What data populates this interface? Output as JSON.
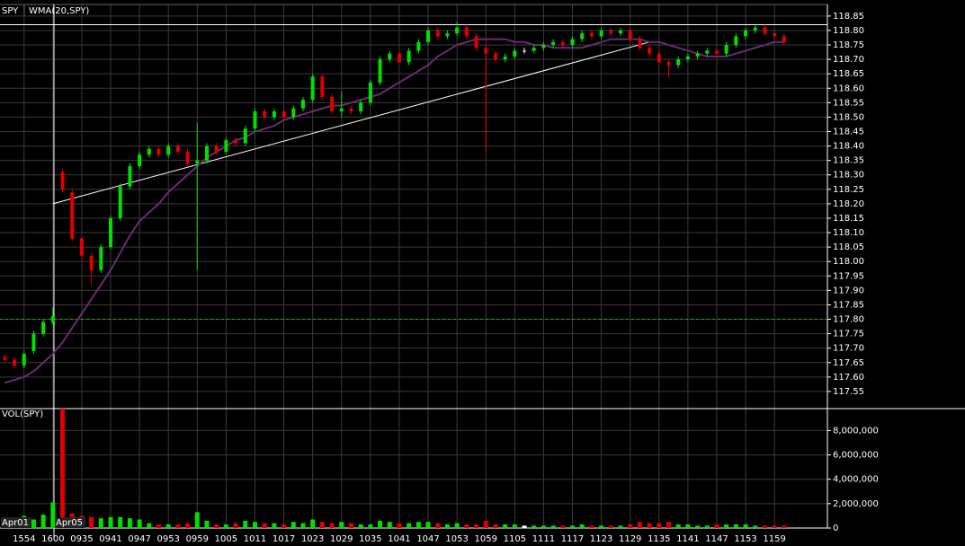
{
  "chart_data": {
    "type": "candlestick",
    "symbol": "SPY",
    "volume_title": "VOL(SPY)",
    "sessions": [
      "Apr01",
      "Apr05"
    ],
    "categories": [
      null,
      null,
      "1554",
      null,
      null,
      "1600",
      null,
      null,
      "0935",
      null,
      null,
      "0941",
      null,
      null,
      "0947",
      null,
      null,
      "0953",
      null,
      null,
      "0959",
      null,
      null,
      "1005",
      null,
      null,
      "1011",
      null,
      null,
      "1017",
      null,
      null,
      "1023",
      null,
      null,
      "1029",
      null,
      null,
      "1035",
      null,
      null,
      "1041",
      null,
      null,
      "1047",
      null,
      null,
      "1053",
      null,
      null,
      "1059",
      null,
      null,
      "1105",
      null,
      null,
      "1111",
      null,
      null,
      "1117",
      null,
      null,
      "1123",
      null,
      null,
      "1129",
      null,
      null,
      "1135",
      null,
      null,
      "1141",
      null,
      null,
      "1147",
      null,
      null,
      "1153",
      null,
      null,
      "1159",
      null
    ],
    "open": [
      117.67,
      117.66,
      117.64,
      117.69,
      117.75,
      117.79,
      118.31,
      118.24,
      118.08,
      118.02,
      117.97,
      118.05,
      118.15,
      118.26,
      118.33,
      118.37,
      118.39,
      118.37,
      118.4,
      118.38,
      118.34,
      118.35,
      118.4,
      118.38,
      118.42,
      118.41,
      118.46,
      118.52,
      118.5,
      118.52,
      118.5,
      118.53,
      118.56,
      118.64,
      118.57,
      118.52,
      118.53,
      118.52,
      118.55,
      118.62,
      118.7,
      118.72,
      118.69,
      118.73,
      118.76,
      118.8,
      118.78,
      118.79,
      118.81,
      118.78,
      118.74,
      118.72,
      118.7,
      118.71,
      118.73,
      118.73,
      118.74,
      118.75,
      118.76,
      118.75,
      118.77,
      118.79,
      118.78,
      118.8,
      118.79,
      118.8,
      118.77,
      118.74,
      118.72,
      118.69,
      118.68,
      118.7,
      118.71,
      118.72,
      118.73,
      118.72,
      118.75,
      118.78,
      118.8,
      118.81,
      118.79,
      118.78
    ],
    "high": [
      117.68,
      117.67,
      117.69,
      117.76,
      117.8,
      117.84,
      118.32,
      118.25,
      118.09,
      118.03,
      118.06,
      118.16,
      118.27,
      118.34,
      118.38,
      118.4,
      118.4,
      118.41,
      118.41,
      118.39,
      118.48,
      118.41,
      118.41,
      118.43,
      118.43,
      118.47,
      118.53,
      118.53,
      118.53,
      118.53,
      118.54,
      118.57,
      118.65,
      118.65,
      118.58,
      118.59,
      118.54,
      118.56,
      118.63,
      118.71,
      118.73,
      118.73,
      118.74,
      118.77,
      118.81,
      118.81,
      118.8,
      118.83,
      118.82,
      118.79,
      118.75,
      118.73,
      118.72,
      118.74,
      118.74,
      118.75,
      118.76,
      118.77,
      118.77,
      118.78,
      118.8,
      118.8,
      118.81,
      118.81,
      118.81,
      118.81,
      118.78,
      118.75,
      118.73,
      118.7,
      118.71,
      118.72,
      118.73,
      118.74,
      118.74,
      118.76,
      118.79,
      118.81,
      118.82,
      118.82,
      118.8,
      118.79
    ],
    "low": [
      117.65,
      117.63,
      117.63,
      117.68,
      117.74,
      117.78,
      118.24,
      118.07,
      118.01,
      117.92,
      117.96,
      118.04,
      118.14,
      118.25,
      118.32,
      118.36,
      118.36,
      118.36,
      118.37,
      118.33,
      117.97,
      118.34,
      118.37,
      118.37,
      118.4,
      118.4,
      118.45,
      118.49,
      118.49,
      118.49,
      118.49,
      118.52,
      118.55,
      118.56,
      118.51,
      118.5,
      118.51,
      118.51,
      118.54,
      118.61,
      118.69,
      118.68,
      118.68,
      118.72,
      118.75,
      118.77,
      118.77,
      118.78,
      118.77,
      118.73,
      118.38,
      118.69,
      118.69,
      118.7,
      118.72,
      118.72,
      118.73,
      118.74,
      118.74,
      118.74,
      118.76,
      118.77,
      118.77,
      118.78,
      118.78,
      118.76,
      118.73,
      118.71,
      118.68,
      118.64,
      118.67,
      118.69,
      118.7,
      118.71,
      118.71,
      118.71,
      118.74,
      118.77,
      118.79,
      118.78,
      118.77,
      118.75
    ],
    "close": [
      117.66,
      117.64,
      117.68,
      117.75,
      117.79,
      117.81,
      118.25,
      118.08,
      118.02,
      117.97,
      118.05,
      118.15,
      118.26,
      118.33,
      118.37,
      118.39,
      118.37,
      118.4,
      118.38,
      118.34,
      118.35,
      118.4,
      118.38,
      118.42,
      118.41,
      118.46,
      118.52,
      118.5,
      118.52,
      118.5,
      118.53,
      118.56,
      118.64,
      118.57,
      118.52,
      118.53,
      118.52,
      118.55,
      118.62,
      118.7,
      118.72,
      118.69,
      118.73,
      118.76,
      118.8,
      118.78,
      118.79,
      118.81,
      118.78,
      118.74,
      118.72,
      118.7,
      118.71,
      118.73,
      118.73,
      118.74,
      118.75,
      118.76,
      118.75,
      118.77,
      118.79,
      118.78,
      118.8,
      118.79,
      118.8,
      118.77,
      118.74,
      118.72,
      118.69,
      118.68,
      118.7,
      118.71,
      118.72,
      118.73,
      118.72,
      118.75,
      118.78,
      118.8,
      118.81,
      118.79,
      118.78,
      118.76
    ],
    "volume": [
      300000,
      600000,
      1000000,
      700000,
      1100000,
      2100000,
      9800000,
      1200000,
      1000000,
      900000,
      800000,
      900000,
      900000,
      800000,
      700000,
      400000,
      300000,
      300000,
      300000,
      400000,
      1300000,
      600000,
      300000,
      300000,
      400000,
      600000,
      500000,
      400000,
      400000,
      300000,
      500000,
      400000,
      700000,
      500000,
      400000,
      500000,
      400000,
      300000,
      300000,
      600000,
      500000,
      400000,
      400000,
      500000,
      500000,
      400000,
      300000,
      400000,
      300000,
      300000,
      600000,
      300000,
      300000,
      300000,
      200000,
      200000,
      200000,
      200000,
      200000,
      200000,
      300000,
      200000,
      200000,
      200000,
      200000,
      300000,
      500000,
      400000,
      400000,
      500000,
      300000,
      300000,
      200000,
      200000,
      300000,
      300000,
      300000,
      300000,
      200000,
      200000,
      200000,
      200000
    ],
    "series": [
      {
        "name": "WMA(20,SPY)",
        "color": "#6b2a72",
        "values": [
          117.58,
          117.59,
          117.6,
          117.62,
          117.65,
          117.68,
          117.72,
          117.77,
          117.82,
          117.87,
          117.92,
          117.97,
          118.03,
          118.09,
          118.14,
          118.17,
          118.2,
          118.24,
          118.27,
          118.3,
          118.33,
          118.36,
          118.38,
          118.4,
          118.42,
          118.43,
          118.45,
          118.46,
          118.47,
          118.49,
          118.5,
          118.51,
          118.52,
          118.53,
          118.54,
          118.54,
          118.55,
          118.56,
          118.57,
          118.58,
          118.6,
          118.62,
          118.64,
          118.66,
          118.68,
          118.71,
          118.73,
          118.75,
          118.76,
          118.77,
          118.77,
          118.77,
          118.77,
          118.76,
          118.76,
          118.75,
          118.75,
          118.74,
          118.74,
          118.74,
          118.74,
          118.75,
          118.76,
          118.77,
          118.77,
          118.77,
          118.77,
          118.76,
          118.76,
          118.75,
          118.74,
          118.73,
          118.72,
          118.71,
          118.71,
          118.71,
          118.72,
          118.73,
          118.74,
          118.75,
          118.76,
          118.76
        ]
      }
    ],
    "up_color": "#00e000",
    "down_color": "#e00000",
    "doji_color": "#ffffff",
    "trendline": {
      "x": [
        5,
        67
      ],
      "y": [
        118.2,
        118.76
      ],
      "color": "#ffffff"
    },
    "hlines": [
      {
        "value": 118.82,
        "color": "#ffffff",
        "dash": false
      },
      {
        "value": 117.8,
        "color": "#00c000",
        "dash": true
      }
    ],
    "ylim": [
      117.5,
      118.89
    ],
    "yticks": [
      117.55,
      {
        "value": 117.6,
        "label": "117.60"
      },
      117.65,
      {
        "value": 117.7,
        "label": "117.70"
      },
      117.75,
      {
        "value": 117.8,
        "label": "117.80"
      },
      117.85,
      {
        "value": 117.9,
        "label": "117.90"
      },
      117.95,
      {
        "value": 118,
        "label": "118.00"
      },
      118.05,
      {
        "value": 118.1,
        "label": "118.10"
      },
      118.15,
      {
        "value": 118.2,
        "label": "118.20"
      },
      118.25,
      {
        "value": 118.3,
        "label": "118.30"
      },
      118.35,
      {
        "value": 118.4,
        "label": "118.40"
      },
      118.45,
      {
        "value": 118.5,
        "label": "118.50"
      },
      118.55,
      {
        "value": 118.6,
        "label": "118.60"
      },
      118.65,
      {
        "value": 118.7,
        "label": "118.70"
      },
      118.75,
      {
        "value": 118.8,
        "label": "118.80"
      },
      118.85
    ],
    "volume_ylim": [
      0,
      9800000
    ],
    "volume_ticks": [
      0,
      {
        "value": 2000000,
        "label": "2,000,000"
      },
      {
        "value": 4000000,
        "label": "4,000,000"
      },
      {
        "value": 6000000,
        "label": "6,000,000"
      },
      {
        "value": 8000000,
        "label": "8,000,000"
      }
    ],
    "grid": true
  }
}
